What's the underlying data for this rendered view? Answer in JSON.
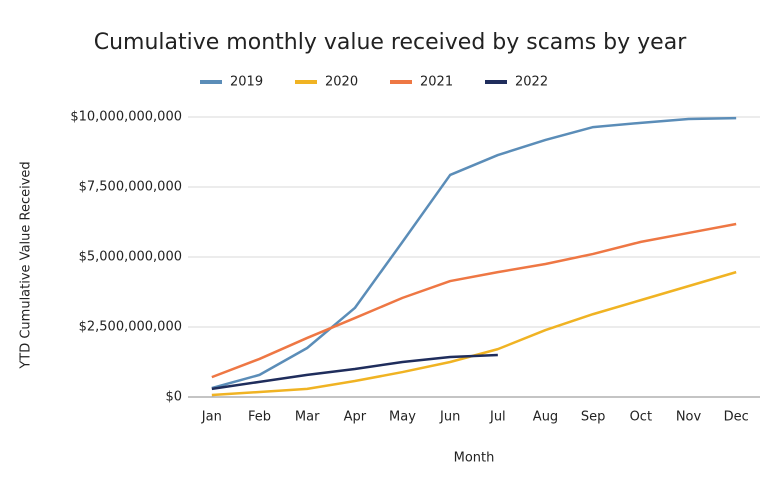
{
  "chart_data": {
    "type": "line",
    "title": "Cumulative monthly value received by scams by year",
    "x_label": "Month",
    "y_label": "YTD Cumulative Value Received",
    "categories": [
      "Jan",
      "Feb",
      "Mar",
      "Apr",
      "May",
      "Jun",
      "Jul",
      "Aug",
      "Sep",
      "Oct",
      "Nov",
      "Dec"
    ],
    "series": [
      {
        "name": "2019",
        "color": "#5b8db8",
        "values": [
          320000000,
          790000000,
          1750000000,
          3180000000,
          5540000000,
          7930000000,
          8640000000,
          9180000000,
          9640000000,
          9790000000,
          9930000000,
          9960000000
        ]
      },
      {
        "name": "2020",
        "color": "#f0b323",
        "values": [
          70000000,
          180000000,
          290000000,
          570000000,
          890000000,
          1250000000,
          1710000000,
          2390000000,
          2960000000,
          3460000000,
          3960000000,
          4460000000
        ]
      },
      {
        "name": "2021",
        "color": "#ee7744",
        "values": [
          710000000,
          1360000000,
          2110000000,
          2820000000,
          3540000000,
          4140000000,
          4460000000,
          4750000000,
          5110000000,
          5540000000,
          5860000000,
          6180000000
        ]
      },
      {
        "name": "2022",
        "color": "#1f2d5c",
        "values": [
          290000000,
          540000000,
          790000000,
          1000000000,
          1250000000,
          1430000000,
          1500000000,
          null,
          null,
          null,
          null,
          null
        ]
      }
    ],
    "ylim": [
      0,
      10000000000
    ],
    "yticks": [
      {
        "value": 0,
        "label": "$0"
      },
      {
        "value": 2500000000,
        "label": "$2,500,000,000"
      },
      {
        "value": 5000000000,
        "label": "$5,000,000,000"
      },
      {
        "value": 7500000000,
        "label": "$7,500,000,000"
      },
      {
        "value": 10000000000,
        "label": "$10,000,000,000"
      }
    ],
    "grid": true,
    "legend": "top"
  }
}
